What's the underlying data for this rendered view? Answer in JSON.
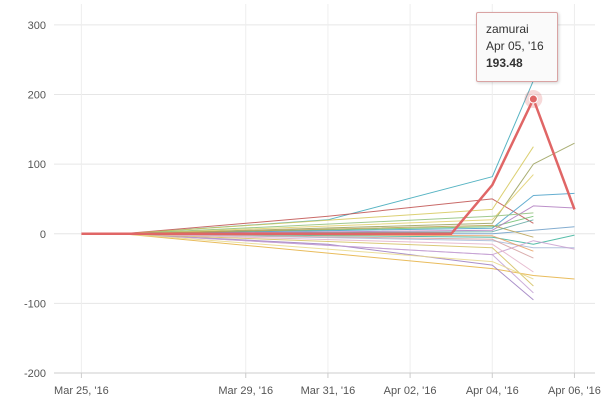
{
  "chart_data": {
    "type": "line",
    "title": "",
    "xlabel": "",
    "ylabel": "",
    "ylim": [
      -200,
      330
    ],
    "grid": true,
    "legend": "none",
    "y_ticks": [
      -200,
      -100,
      0,
      100,
      200,
      300
    ],
    "x_ticks": [
      {
        "date": "2016-03-25",
        "label": "Mar 25, '16"
      },
      {
        "date": "2016-03-29",
        "label": "Mar 29, '16"
      },
      {
        "date": "2016-03-31",
        "label": "Mar 31, '16"
      },
      {
        "date": "2016-04-02",
        "label": "Apr 02, '16"
      },
      {
        "date": "2016-04-04",
        "label": "Apr 04, '16"
      },
      {
        "date": "2016-04-06",
        "label": "Apr 06, '16"
      }
    ],
    "x_min": "2016-03-24T08:00",
    "x_max": "2016-04-06T12:00",
    "series": [
      {
        "name": "zamurai",
        "color": "#e06666",
        "highlighted": true,
        "points": [
          [
            "2016-03-25",
            0
          ],
          [
            "2016-04-03",
            0
          ],
          [
            "2016-04-04",
            70
          ],
          [
            "2016-04-05",
            193.48
          ],
          [
            "2016-04-06",
            35
          ]
        ]
      },
      {
        "color": "#3aa7b8",
        "points": [
          [
            "2016-03-26",
            0
          ],
          [
            "2016-03-31",
            20
          ],
          [
            "2016-04-04",
            82
          ],
          [
            "2016-04-05",
            220
          ]
        ]
      },
      {
        "color": "#c0504d",
        "points": [
          [
            "2016-03-26",
            0
          ],
          [
            "2016-03-31",
            25
          ],
          [
            "2016-04-04",
            50
          ],
          [
            "2016-04-05",
            15
          ]
        ]
      },
      {
        "color": "#9aa05a",
        "points": [
          [
            "2016-03-26",
            0
          ],
          [
            "2016-04-04",
            15
          ],
          [
            "2016-04-05",
            100
          ],
          [
            "2016-04-06",
            130
          ]
        ]
      },
      {
        "color": "#d6c85a",
        "points": [
          [
            "2016-03-26",
            0
          ],
          [
            "2016-04-04",
            35
          ],
          [
            "2016-04-05",
            125
          ]
        ]
      },
      {
        "color": "#e0cf6a",
        "points": [
          [
            "2016-03-26",
            0
          ],
          [
            "2016-04-04",
            20
          ],
          [
            "2016-04-05",
            85
          ]
        ]
      },
      {
        "color": "#6cbf6c",
        "points": [
          [
            "2016-03-26",
            0
          ],
          [
            "2016-04-04",
            10
          ],
          [
            "2016-04-05",
            25
          ]
        ]
      },
      {
        "color": "#4aa0c8",
        "points": [
          [
            "2016-03-26",
            0
          ],
          [
            "2016-04-04",
            8
          ],
          [
            "2016-04-05",
            55
          ],
          [
            "2016-04-06",
            58
          ]
        ]
      },
      {
        "color": "#b07cc0",
        "points": [
          [
            "2016-03-26",
            0
          ],
          [
            "2016-04-04",
            5
          ],
          [
            "2016-04-05",
            40
          ],
          [
            "2016-04-06",
            37
          ]
        ]
      },
      {
        "color": "#3bb39b",
        "points": [
          [
            "2016-03-26",
            0
          ],
          [
            "2016-04-04",
            -5
          ],
          [
            "2016-04-05",
            -15
          ],
          [
            "2016-04-06",
            -2
          ]
        ]
      },
      {
        "color": "#6f9fc8",
        "points": [
          [
            "2016-03-26",
            0
          ],
          [
            "2016-04-04",
            0
          ],
          [
            "2016-04-05",
            5
          ],
          [
            "2016-04-06",
            10
          ]
        ]
      },
      {
        "color": "#a6b8d8",
        "points": [
          [
            "2016-03-26",
            0
          ],
          [
            "2016-04-04",
            -10
          ],
          [
            "2016-04-05",
            -20
          ],
          [
            "2016-04-06",
            -20
          ]
        ]
      },
      {
        "color": "#c9a0d0",
        "points": [
          [
            "2016-03-26",
            0
          ],
          [
            "2016-04-04",
            -30
          ],
          [
            "2016-04-05",
            -10
          ],
          [
            "2016-04-06",
            -22
          ]
        ]
      },
      {
        "color": "#e5b040",
        "points": [
          [
            "2016-03-26",
            0
          ],
          [
            "2016-04-04",
            -50
          ],
          [
            "2016-04-05",
            -60
          ],
          [
            "2016-04-06",
            -65
          ]
        ]
      },
      {
        "color": "#9b7bbf",
        "points": [
          [
            "2016-03-26",
            0
          ],
          [
            "2016-03-31",
            -15
          ],
          [
            "2016-04-04",
            -45
          ],
          [
            "2016-04-05",
            -95
          ]
        ]
      },
      {
        "color": "#c3a0d3",
        "points": [
          [
            "2016-03-26",
            0
          ],
          [
            "2016-04-04",
            -30
          ],
          [
            "2016-04-05",
            -85
          ]
        ]
      },
      {
        "color": "#d4c060",
        "points": [
          [
            "2016-03-26",
            0
          ],
          [
            "2016-04-04",
            -20
          ],
          [
            "2016-04-05",
            -75
          ]
        ]
      },
      {
        "color": "#e8d88a",
        "points": [
          [
            "2016-03-26",
            0
          ],
          [
            "2016-04-04",
            -40
          ],
          [
            "2016-04-05",
            -65
          ]
        ]
      },
      {
        "color": "#e3b0c8",
        "points": [
          [
            "2016-03-26",
            0
          ],
          [
            "2016-04-04",
            -15
          ],
          [
            "2016-04-05",
            -55
          ]
        ]
      },
      {
        "color": "#b8a050",
        "points": [
          [
            "2016-03-26",
            0
          ],
          [
            "2016-04-04",
            12
          ],
          [
            "2016-04-05",
            -5
          ]
        ]
      },
      {
        "color": "#5fa7a0",
        "points": [
          [
            "2016-03-26",
            0
          ],
          [
            "2016-04-04",
            3
          ],
          [
            "2016-04-05",
            20
          ]
        ]
      },
      {
        "color": "#8fc07a",
        "points": [
          [
            "2016-03-26",
            0
          ],
          [
            "2016-04-04",
            25
          ],
          [
            "2016-04-05",
            30
          ]
        ]
      },
      {
        "color": "#d4a0a0",
        "points": [
          [
            "2016-03-26",
            0
          ],
          [
            "2016-04-04",
            -8
          ],
          [
            "2016-04-05",
            -35
          ]
        ]
      },
      {
        "color": "#e8a060",
        "points": [
          [
            "2016-03-26",
            0
          ],
          [
            "2016-04-04",
            -3
          ],
          [
            "2016-04-05",
            -25
          ]
        ]
      }
    ],
    "tooltip": {
      "series": "zamurai",
      "date_label": "Apr 05, '16",
      "value_label": "193.48"
    }
  }
}
